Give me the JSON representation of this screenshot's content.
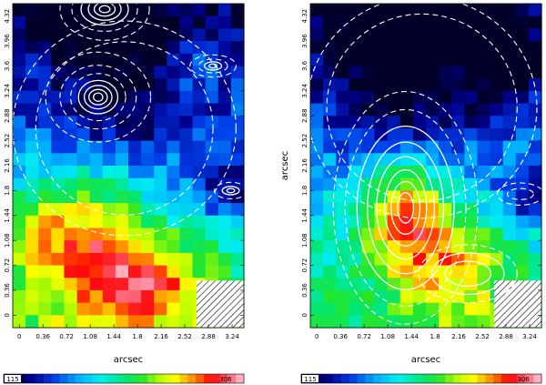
{
  "figure": {
    "panels": [
      "left",
      "right"
    ]
  },
  "chart_data": [
    {
      "type": "heatmap",
      "panel": "left",
      "xlabel": "arcsec",
      "ylabel": "",
      "x_ticks": [
        "0",
        "0.36",
        "0.72",
        "1.08",
        "1.44",
        "1.8",
        "2.16",
        "2.52",
        "2.88",
        "3.24"
      ],
      "y_ticks": [
        "0",
        "0.36",
        "0.72",
        "1.08",
        "1.44",
        "1.8",
        "2.16",
        "2.52",
        "2.88",
        "3.24",
        "3.6",
        "3.96",
        "4.32"
      ],
      "xlim": [
        -0.1,
        3.42
      ],
      "ylim": [
        -0.18,
        4.5
      ],
      "colorbar": {
        "min_label": "115",
        "max_label": "306",
        "min": 115,
        "max": 306
      },
      "overlay": "white contours (dashed low levels, solid high levels)",
      "hatched_region": "bottom-right, masked"
    },
    {
      "type": "heatmap",
      "panel": "right",
      "xlabel": "arcsec",
      "ylabel": "arcsec",
      "x_ticks": [
        "0",
        "0.36",
        "0.72",
        "1.08",
        "1.44",
        "1.8",
        "2.16",
        "2.52",
        "2.88",
        "3.24"
      ],
      "y_ticks": [
        "0",
        "0.36",
        "0.72",
        "1.08",
        "1.44",
        "1.8",
        "2.16",
        "2.52",
        "2.88",
        "3.24",
        "3.6",
        "3.96",
        "4.32"
      ],
      "xlim": [
        -0.1,
        3.42
      ],
      "ylim": [
        -0.18,
        4.5
      ],
      "colorbar": {
        "min_label": "115",
        "max_label": "306",
        "min": 115,
        "max": 306
      },
      "overlay": "white contours (dashed low levels, solid high levels)",
      "hatched_region": "bottom-right, masked"
    }
  ]
}
